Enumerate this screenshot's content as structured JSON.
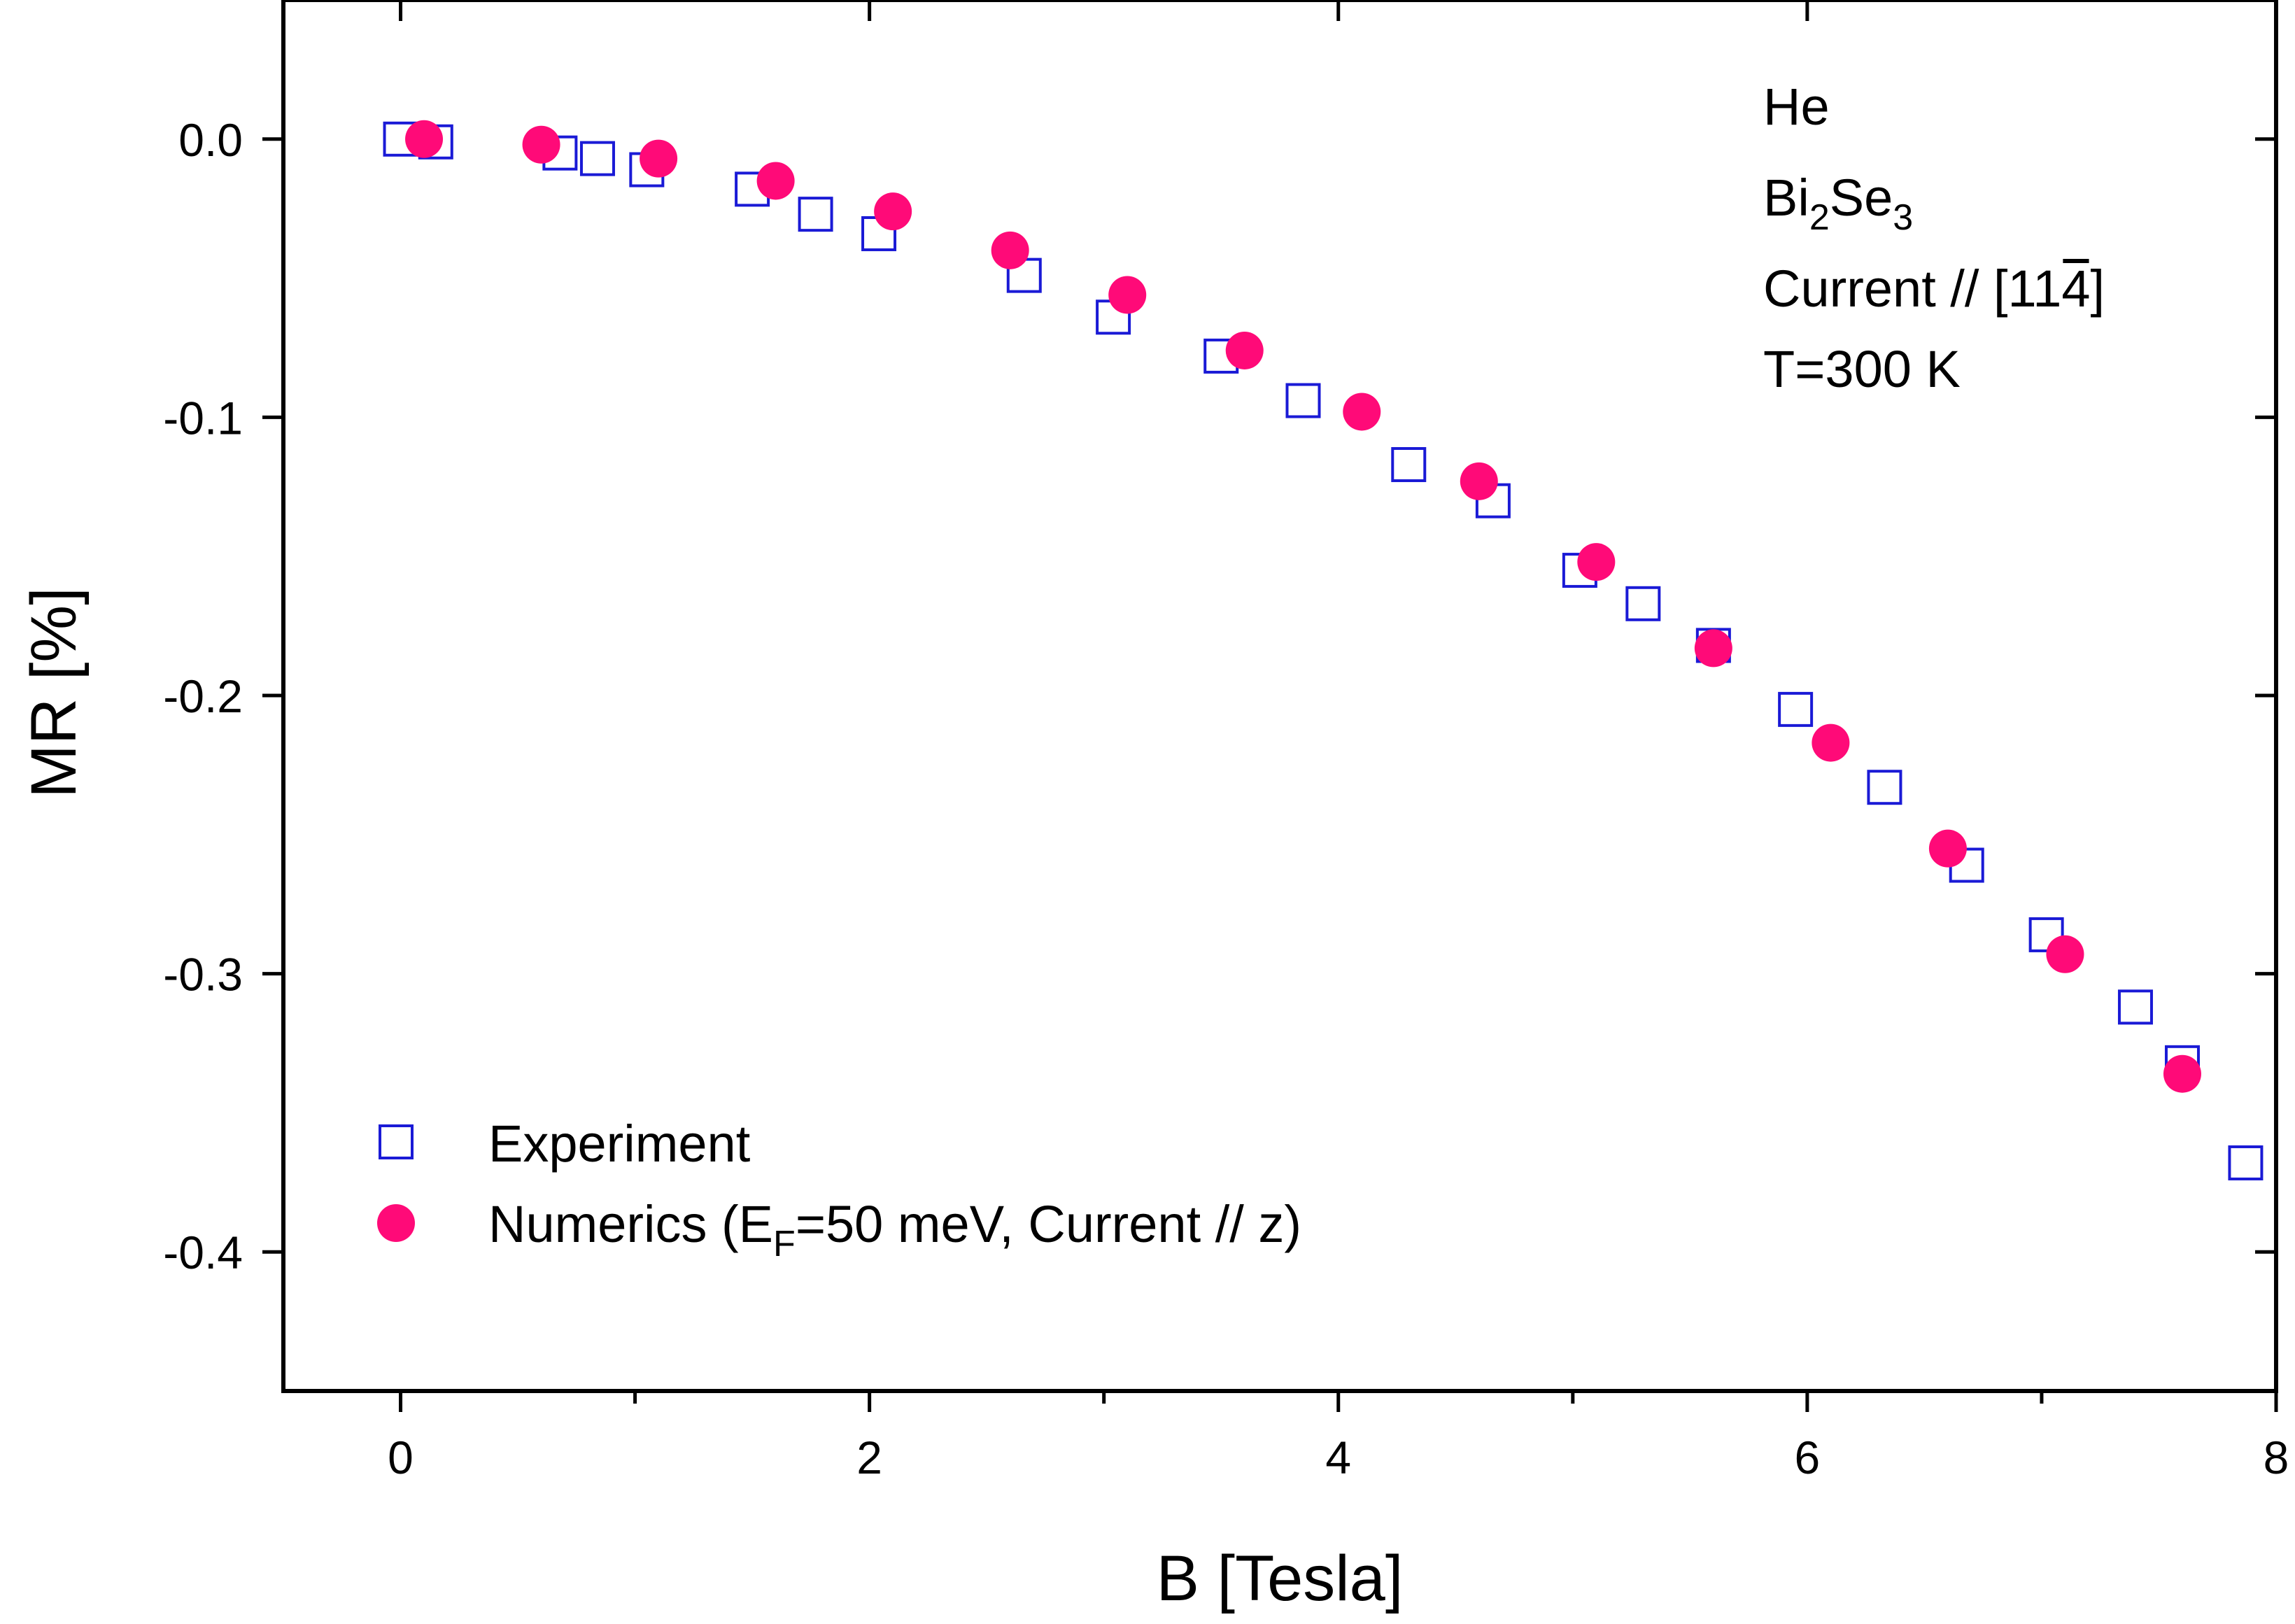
{
  "chart_data": {
    "type": "scatter",
    "xlabel": "B [Tesla]",
    "ylabel": "MR [%]",
    "xlim": [
      -0.5,
      8
    ],
    "ylim": [
      -0.45,
      0.05
    ],
    "xticks": [
      0,
      2,
      4,
      6,
      8
    ],
    "xtick_labels": [
      "0",
      "2",
      "4",
      "6",
      "8"
    ],
    "xticks_minor": [
      1,
      3,
      5,
      7
    ],
    "yticks": [
      0.0,
      -0.1,
      -0.2,
      -0.3,
      -0.4
    ],
    "ytick_labels": [
      "0.0",
      "-0.1",
      "-0.2",
      "-0.3",
      "-0.4"
    ],
    "grid": false,
    "annotations": {
      "line1": "He",
      "line2_base": "Bi",
      "line2_sub1": "2",
      "line2_mid": "Se",
      "line2_sub2": "3",
      "line3_prefix": "Current // [11",
      "line3_bar": "4",
      "line3_suffix": "]",
      "line4": "T=300 K"
    },
    "legend": {
      "position": "bottom-left",
      "experiment_label": "Experiment",
      "numerics_prefix": "Numerics (E",
      "numerics_sub": "F",
      "numerics_suffix": "=50 meV, Current // z)"
    },
    "series": [
      {
        "name": "Experiment",
        "marker": "open-square",
        "color": "#1a1ad6",
        "x": [
          0.0,
          0.15,
          0.68,
          0.84,
          1.05,
          1.5,
          1.77,
          2.04,
          2.66,
          3.04,
          3.5,
          3.85,
          4.3,
          4.66,
          5.03,
          5.3,
          5.6,
          5.95,
          6.33,
          6.68,
          7.02,
          7.4,
          7.6,
          7.87
        ],
        "y": [
          0.0,
          -0.001,
          -0.005,
          -0.007,
          -0.011,
          -0.018,
          -0.027,
          -0.034,
          -0.049,
          -0.064,
          -0.078,
          -0.094,
          -0.117,
          -0.13,
          -0.155,
          -0.167,
          -0.182,
          -0.205,
          -0.233,
          -0.261,
          -0.286,
          -0.312,
          -0.332,
          -0.368
        ]
      },
      {
        "name": "Numerics (EF=50 meV, Current // z)",
        "marker": "filled-circle",
        "color": "#ff0a78",
        "x": [
          0.1,
          0.6,
          1.1,
          1.6,
          2.1,
          2.6,
          3.1,
          3.6,
          4.1,
          4.6,
          5.1,
          5.6,
          6.1,
          6.6,
          7.1,
          7.6
        ],
        "y": [
          0.0,
          -0.002,
          -0.007,
          -0.015,
          -0.026,
          -0.04,
          -0.056,
          -0.076,
          -0.098,
          -0.123,
          -0.152,
          -0.183,
          -0.217,
          -0.255,
          -0.293,
          -0.336
        ]
      }
    ]
  }
}
